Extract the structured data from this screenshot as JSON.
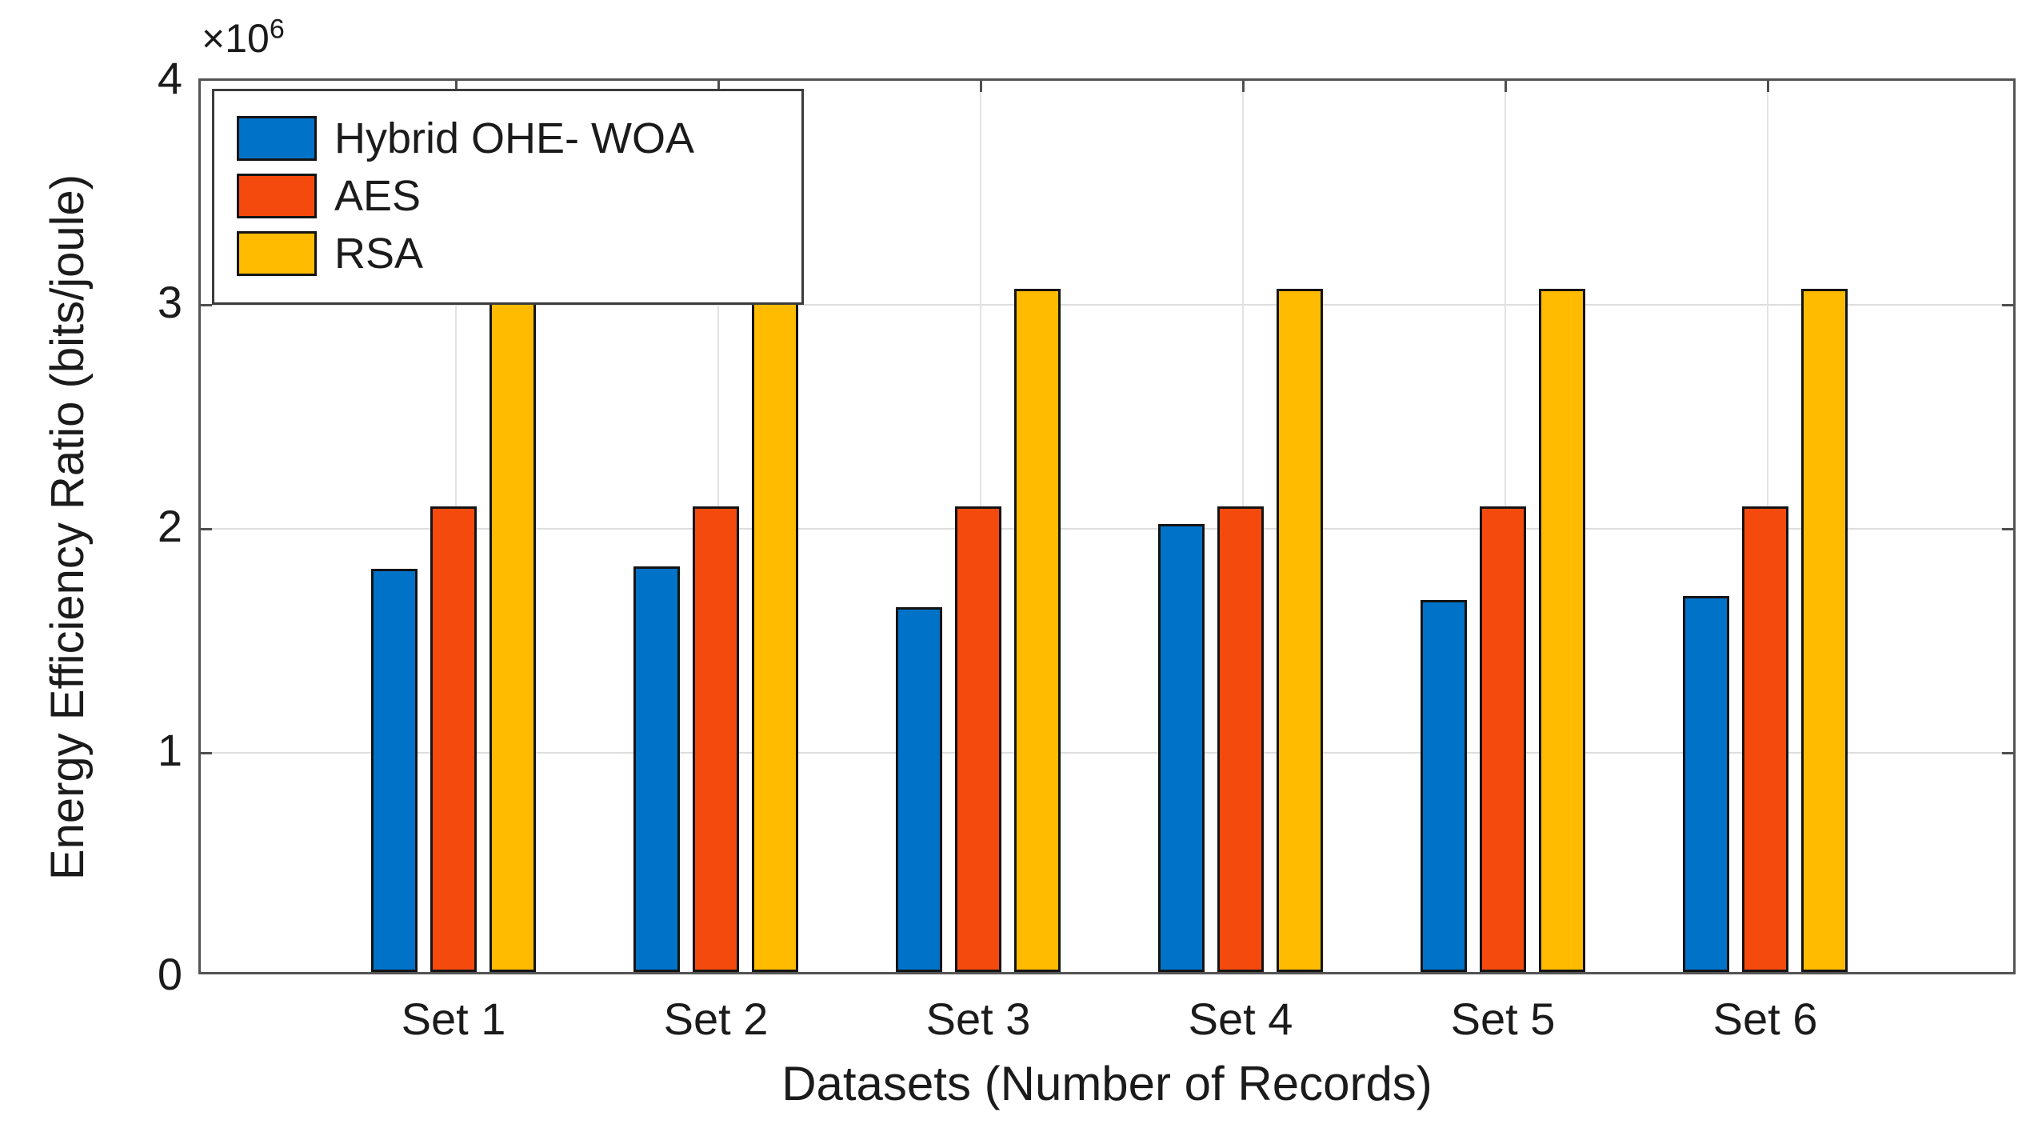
{
  "figure": {
    "background": "#ffffff",
    "axis_border_color": "#545454",
    "grid_color": "#dedede",
    "text_color": "#1b1b1b"
  },
  "chart_data": {
    "type": "bar",
    "title": "",
    "categories": [
      "Set 1",
      "Set 2",
      "Set 3",
      "Set 4",
      "Set 5",
      "Set 6"
    ],
    "series": [
      {
        "name": "Hybrid OHE- WOA",
        "color": "#0073C8",
        "values": [
          1800000,
          1810000,
          1630000,
          2000000,
          1660000,
          1680000
        ]
      },
      {
        "name": "AES",
        "color": "#F54A0E",
        "values": [
          2080000,
          2080000,
          2080000,
          2080000,
          2080000,
          2080000
        ]
      },
      {
        "name": "RSA",
        "color": "#FFBB00",
        "values": [
          3050000,
          3050000,
          3050000,
          3050000,
          3050000,
          3050000
        ]
      }
    ],
    "xlabel": "Datasets (Number of Records)",
    "ylabel": "Energy Efficiency Ratio (bits/joule)",
    "ylim": [
      0,
      4000000
    ],
    "yticks": [
      0,
      1000000,
      2000000,
      3000000,
      4000000
    ],
    "ytick_labels": [
      "0",
      "1",
      "2",
      "3",
      "4"
    ],
    "y_exponent_prefix": "×10",
    "y_exponent": "6",
    "grid": true,
    "legend_position": "top-left",
    "legend_labels": [
      "Hybrid OHE- WOA",
      "AES",
      "RSA"
    ]
  }
}
